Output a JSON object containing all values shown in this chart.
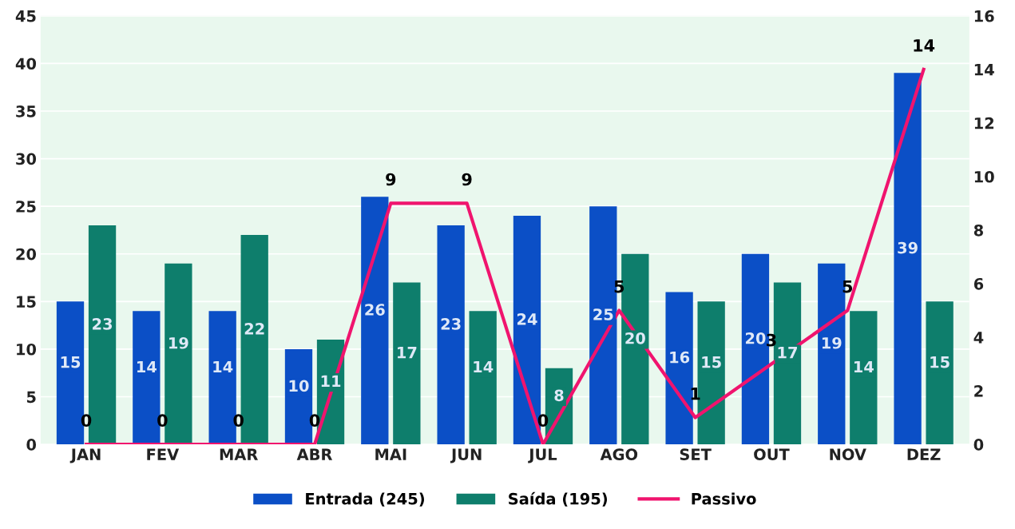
{
  "chart_data": {
    "type": "bar",
    "categories": [
      "JAN",
      "FEV",
      "MAR",
      "ABR",
      "MAI",
      "JUN",
      "JUL",
      "AGO",
      "SET",
      "OUT",
      "NOV",
      "DEZ"
    ],
    "series": [
      {
        "name": "Entrada (245)",
        "color": "#0b4fc6",
        "values": [
          15,
          14,
          14,
          10,
          26,
          23,
          24,
          25,
          16,
          20,
          19,
          39
        ]
      },
      {
        "name": "Saída (195)",
        "color": "#0e7e6c",
        "values": [
          23,
          19,
          22,
          11,
          17,
          14,
          8,
          20,
          15,
          17,
          14,
          15
        ]
      },
      {
        "name": "Passivo",
        "type": "line",
        "axis": "y2",
        "color": "#f0146e",
        "values": [
          0,
          0,
          0,
          0,
          9,
          9,
          0,
          5,
          1,
          3,
          5,
          14
        ]
      }
    ],
    "ylim": [
      0,
      45
    ],
    "yticks": [
      0,
      5,
      10,
      15,
      20,
      25,
      30,
      35,
      40,
      45
    ],
    "y2lim": [
      0,
      16
    ],
    "y2ticks": [
      0,
      2,
      4,
      6,
      8,
      10,
      12,
      14,
      16
    ],
    "grid": "y",
    "legend": "bottom",
    "data_labels": true,
    "marker": "none",
    "line_style": "solid"
  }
}
